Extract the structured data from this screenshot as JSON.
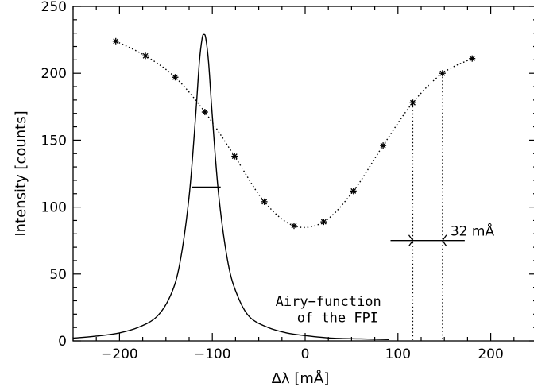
{
  "chart_data": {
    "type": "line",
    "title": "",
    "xlabel": "Δλ [mÅ]",
    "ylabel": "Intensity [counts]",
    "xlim": [
      -250,
      250
    ],
    "ylim": [
      0,
      250
    ],
    "xticks": [
      -200,
      -100,
      0,
      100,
      200
    ],
    "yticks": [
      0,
      50,
      100,
      150,
      200,
      250
    ],
    "grid": false,
    "series": [
      {
        "style": "dotted line with asterisk markers",
        "x": [
          -204,
          -172,
          -140,
          -108,
          -76,
          -44,
          -12,
          20,
          52,
          84,
          116,
          148,
          180
        ],
        "y": [
          224,
          213,
          197,
          171,
          138,
          104,
          86,
          89,
          112,
          146,
          178,
          200,
          211
        ]
      },
      {
        "style": "solid line",
        "x": [
          -250,
          -220,
          -200,
          -180,
          -160,
          -145,
          -135,
          -125,
          -118,
          -114,
          -111,
          -109,
          -107,
          -104,
          -100,
          -93,
          -83,
          -73,
          -60,
          -40,
          -20,
          0,
          30,
          60,
          90
        ],
        "y": [
          2,
          4,
          6,
          10,
          18,
          34,
          58,
          108,
          168,
          208,
          226,
          229,
          226,
          208,
          168,
          108,
          58,
          34,
          18,
          10,
          6,
          4,
          2,
          1.5,
          1
        ]
      }
    ],
    "annotations": {
      "fwhm_bar": {
        "x": [
          -122,
          -91
        ],
        "y": 115
      },
      "separation_bar": {
        "x": [
          116,
          148
        ],
        "y": 75,
        "label": "32 mÅ"
      },
      "vertical_marks": [
        116,
        148
      ],
      "airy_label_line1": "Airy−function",
      "airy_label_line2": "of the FPI"
    }
  }
}
